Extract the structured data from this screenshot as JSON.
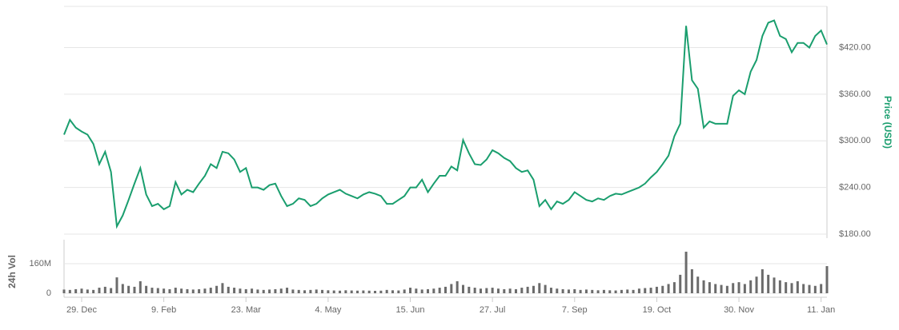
{
  "chart_data": [
    {
      "type": "line",
      "y_label": "Price (USD)",
      "color": "#1a9e6e",
      "ylim": [
        180,
        473
      ],
      "yticks": [
        {
          "value": 180,
          "label": "$180.00"
        },
        {
          "value": 240,
          "label": "$240.00"
        },
        {
          "value": 300,
          "label": "$300.00"
        },
        {
          "value": 360,
          "label": "$360.00"
        },
        {
          "value": 420,
          "label": "$420.00"
        }
      ],
      "values": [
        308,
        327,
        317,
        312,
        308,
        296,
        270,
        286,
        260,
        190,
        204,
        224,
        245,
        265,
        231,
        216,
        219,
        212,
        216,
        247,
        231,
        237,
        234,
        245,
        255,
        270,
        265,
        286,
        284,
        276,
        260,
        265,
        240,
        240,
        237,
        243,
        245,
        229,
        216,
        219,
        226,
        224,
        216,
        219,
        226,
        231,
        234,
        237,
        232,
        229,
        226,
        231,
        234,
        232,
        229,
        219,
        219,
        224,
        229,
        240,
        240,
        250,
        234,
        245,
        255,
        255,
        267,
        262,
        301,
        284,
        270,
        269,
        276,
        288,
        284,
        278,
        274,
        265,
        260,
        262,
        250,
        216,
        224,
        212,
        222,
        219,
        224,
        234,
        229,
        224,
        222,
        226,
        224,
        229,
        232,
        231,
        234,
        237,
        240,
        245,
        253,
        260,
        270,
        281,
        306,
        322,
        448,
        378,
        367,
        317,
        325,
        322,
        322,
        322,
        358,
        365,
        360,
        389,
        404,
        435,
        452,
        455,
        435,
        431,
        414,
        426,
        426,
        420,
        435,
        442,
        424
      ]
    },
    {
      "type": "bar",
      "y_label": "24h Vol",
      "color": "#6b6b6b",
      "ylim": [
        0,
        290000000
      ],
      "yticks": [
        0,
        {
          "value": 160000000,
          "label": "160M"
        }
      ],
      "categories": [
        null,
        null,
        null,
        "29. Dec",
        null,
        null,
        null,
        null,
        null,
        null,
        null,
        null,
        null,
        null,
        null,
        null,
        null,
        "9. Feb",
        null,
        null,
        null,
        null,
        null,
        null,
        null,
        null,
        null,
        null,
        null,
        null,
        null,
        "23. Mar",
        null,
        null,
        null,
        null,
        null,
        null,
        null,
        null,
        null,
        null,
        null,
        null,
        null,
        "4. May",
        null,
        null,
        null,
        null,
        null,
        null,
        null,
        null,
        null,
        null,
        null,
        null,
        null,
        "15. Jun",
        null,
        null,
        null,
        null,
        null,
        null,
        null,
        null,
        null,
        null,
        null,
        null,
        null,
        "27. Jul",
        null,
        null,
        null,
        null,
        null,
        null,
        null,
        null,
        null,
        null,
        null,
        null,
        null,
        "7. Sep",
        null,
        null,
        null,
        null,
        null,
        null,
        null,
        null,
        null,
        null,
        null,
        null,
        null,
        "19. Oct",
        null,
        null,
        null,
        null,
        null,
        null,
        null,
        null,
        null,
        null,
        null,
        null,
        null,
        "30. Nov",
        null,
        null,
        null,
        null,
        null,
        null,
        null,
        null,
        null,
        null,
        null,
        null,
        null,
        "11. Jan",
        null
      ],
      "values": [
        20000000,
        18000000,
        22000000,
        25000000,
        20000000,
        18000000,
        30000000,
        35000000,
        28000000,
        86000000,
        50000000,
        40000000,
        35000000,
        65000000,
        40000000,
        30000000,
        28000000,
        25000000,
        22000000,
        30000000,
        25000000,
        22000000,
        20000000,
        22000000,
        25000000,
        30000000,
        40000000,
        55000000,
        35000000,
        30000000,
        25000000,
        22000000,
        25000000,
        20000000,
        18000000,
        20000000,
        22000000,
        25000000,
        30000000,
        20000000,
        18000000,
        16000000,
        18000000,
        20000000,
        18000000,
        16000000,
        15000000,
        14000000,
        16000000,
        15000000,
        14000000,
        15000000,
        14000000,
        13000000,
        14000000,
        18000000,
        16000000,
        15000000,
        20000000,
        30000000,
        25000000,
        20000000,
        22000000,
        25000000,
        30000000,
        35000000,
        50000000,
        65000000,
        45000000,
        35000000,
        30000000,
        25000000,
        28000000,
        30000000,
        25000000,
        22000000,
        25000000,
        22000000,
        30000000,
        35000000,
        40000000,
        55000000,
        45000000,
        30000000,
        25000000,
        22000000,
        20000000,
        22000000,
        18000000,
        20000000,
        18000000,
        16000000,
        18000000,
        16000000,
        15000000,
        18000000,
        20000000,
        18000000,
        25000000,
        28000000,
        30000000,
        35000000,
        40000000,
        50000000,
        60000000,
        100000000,
        225000000,
        130000000,
        90000000,
        70000000,
        60000000,
        50000000,
        45000000,
        40000000,
        55000000,
        60000000,
        50000000,
        70000000,
        90000000,
        130000000,
        100000000,
        85000000,
        70000000,
        60000000,
        55000000,
        65000000,
        50000000,
        45000000,
        40000000,
        50000000,
        147000000
      ]
    }
  ]
}
